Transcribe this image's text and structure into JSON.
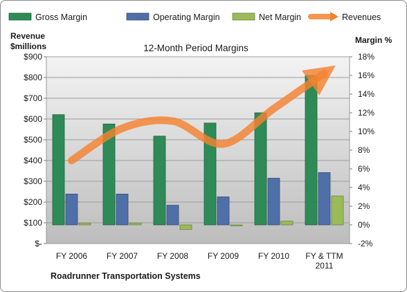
{
  "chart_data": {
    "type": "bar",
    "title": "12-Month Period Margins",
    "footer": "Roadrunner Transportation Systems",
    "left_axis": {
      "label_line1": "Revenue",
      "label_line2": "$millions",
      "range": [
        0,
        900
      ],
      "ticks": [
        "$-",
        "$100",
        "$200",
        "$300",
        "$400",
        "$500",
        "$600",
        "$700",
        "$800",
        "$900"
      ]
    },
    "right_axis": {
      "label": "Margin %",
      "range": [
        -2,
        18
      ],
      "ticks": [
        "-2%",
        "0%",
        "2%",
        "4%",
        "6%",
        "8%",
        "10%",
        "12%",
        "14%",
        "16%",
        "18%"
      ]
    },
    "categories": [
      [
        "FY 2006"
      ],
      [
        "FY 2007"
      ],
      [
        "FY 2008"
      ],
      [
        "FY 2009"
      ],
      [
        "FY 2010"
      ],
      [
        "FY & TTM",
        "2011"
      ]
    ],
    "series": [
      {
        "name": "Gross Margin",
        "axis": "right",
        "type": "bar",
        "color": "#2e8b57",
        "values": [
          11.8,
          10.8,
          9.5,
          10.9,
          12.0,
          16.0
        ]
      },
      {
        "name": "Operating Margin",
        "axis": "right",
        "type": "bar",
        "color": "#4f6fa8",
        "values": [
          3.3,
          3.3,
          2.1,
          3.0,
          5.0,
          5.6
        ]
      },
      {
        "name": "Net Margin",
        "axis": "right",
        "type": "bar",
        "color": "#9bbb59",
        "values": [
          0.2,
          0.2,
          -0.5,
          -0.1,
          0.4,
          3.1
        ]
      },
      {
        "name": "Revenues",
        "axis": "left",
        "type": "line",
        "color": "#f58231",
        "values": [
          400,
          555,
          590,
          480,
          650,
          820
        ]
      }
    ],
    "grid": true,
    "legend": "top"
  }
}
